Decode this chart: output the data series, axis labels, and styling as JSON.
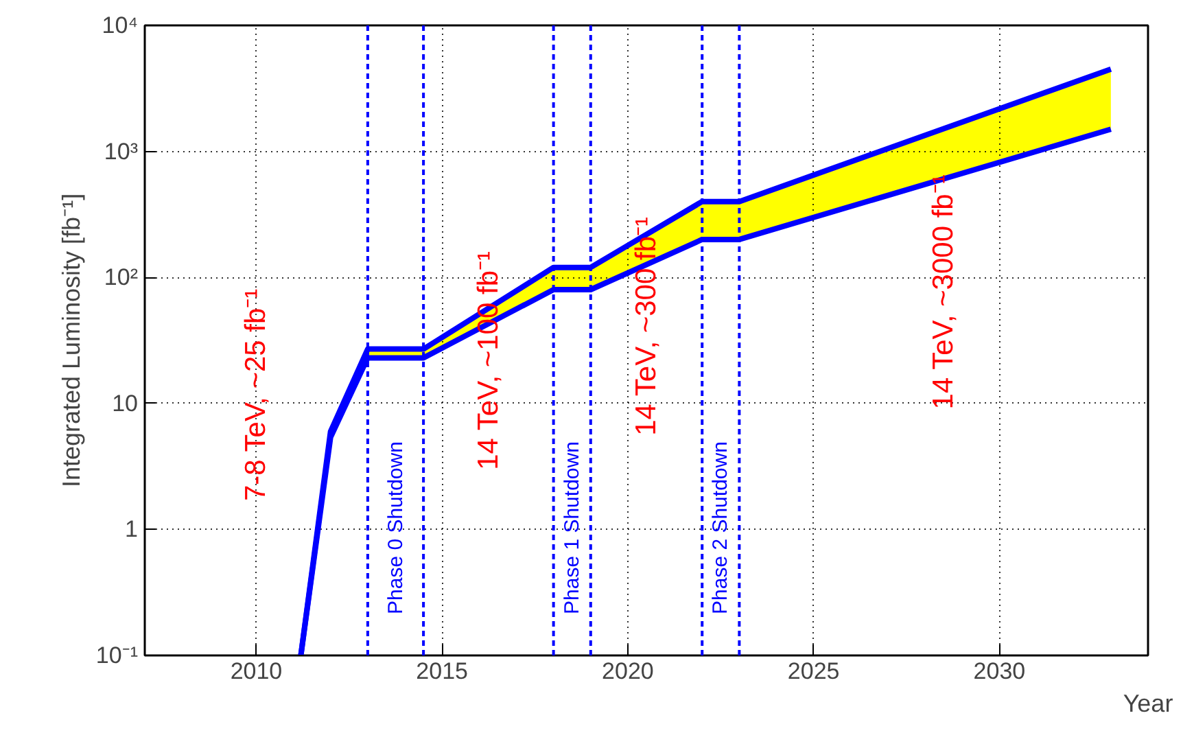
{
  "chart_data": {
    "type": "area",
    "xlabel": "Year",
    "ylabel": "Integrated Luminosity [fb⁻¹]",
    "x": [
      2011.2,
      2012,
      2013,
      2014.5,
      2018,
      2019,
      2022,
      2023,
      2033
    ],
    "series": [
      {
        "color": "#ffff00",
        "values": [
          0.1,
          6,
          27,
          27,
          120,
          120,
          400,
          400,
          4500
        ]
      },
      {
        "type": "line",
        "color": "#0000ff",
        "values": [
          0.1,
          5.4,
          23,
          23,
          80,
          80,
          200,
          200,
          1500
        ]
      }
    ],
    "log": "y",
    "xlim": [
      2007,
      2034
    ],
    "ylim": [
      0.1,
      10000
    ],
    "xticks": [
      2010,
      2015,
      2020,
      2025,
      2030
    ],
    "yticks": [
      {
        "value": 0.1,
        "label": "10⁻¹"
      },
      1,
      10,
      {
        "value": 100,
        "label": "10²"
      },
      {
        "value": 1000,
        "label": "10³"
      },
      {
        "value": 10000,
        "label": "10⁴"
      }
    ],
    "grid": true,
    "line_style": "solid",
    "marker": "none",
    "ref_lines": [
      {
        "axis": "x",
        "value": 2013,
        "label": "Phase 0 Shutdown",
        "color": "#0000ff",
        "line_style": "dashed"
      },
      {
        "axis": "x",
        "value": 2014.5,
        "label": null,
        "color": "#0000ff",
        "line_style": "dashed"
      },
      {
        "axis": "x",
        "value": 2018,
        "label": "Phase 1 Shutdown",
        "color": "#0000ff",
        "line_style": "dashed"
      },
      {
        "axis": "x",
        "value": 2019,
        "label": null,
        "color": "#0000ff",
        "line_style": "dashed"
      },
      {
        "axis": "x",
        "value": 2022,
        "label": "Phase 2 Shutdown",
        "color": "#0000ff",
        "line_style": "dashed"
      },
      {
        "axis": "x",
        "value": 2023,
        "label": null,
        "color": "#0000ff",
        "line_style": "dashed"
      }
    ],
    "annotations": [
      "7-8 TeV, ~25 fb⁻¹",
      "14 TeV, ~100 fb⁻¹",
      "14 TeV, ~300 fb⁻¹",
      "14 TeV, ~3000 fb⁻¹"
    ]
  }
}
